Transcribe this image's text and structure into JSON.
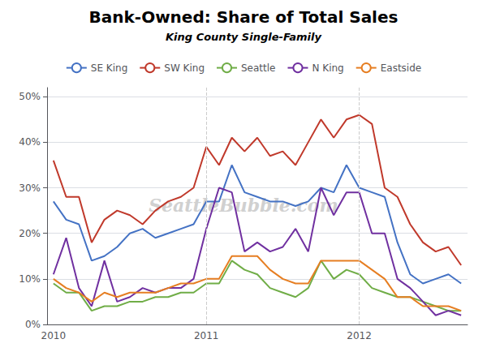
{
  "chart_data": {
    "type": "line",
    "title": "Bank-Owned: Share of Total Sales",
    "subtitle": "King County Single-Family",
    "annotations": [
      "SeattleBubble.com"
    ],
    "categories": [
      "2010",
      null,
      null,
      null,
      null,
      null,
      null,
      null,
      null,
      null,
      null,
      null,
      "2011",
      null,
      null,
      null,
      null,
      null,
      null,
      null,
      null,
      null,
      null,
      null,
      "2012",
      null,
      null,
      null,
      null,
      null,
      null,
      null,
      null
    ],
    "series": [
      {
        "name": "SE King",
        "color": "#4472c4",
        "values": [
          0.27,
          0.23,
          0.22,
          0.14,
          0.15,
          0.17,
          0.2,
          0.21,
          0.19,
          0.2,
          0.21,
          0.22,
          0.27,
          0.27,
          0.35,
          0.29,
          0.28,
          0.27,
          0.27,
          0.26,
          0.27,
          0.3,
          0.29,
          0.35,
          0.3,
          0.29,
          0.28,
          0.18,
          0.11,
          0.09,
          0.1,
          0.11,
          0.09
        ]
      },
      {
        "name": "SW King",
        "color": "#c0392b",
        "values": [
          0.36,
          0.28,
          0.28,
          0.18,
          0.23,
          0.25,
          0.24,
          0.22,
          0.25,
          0.27,
          0.28,
          0.3,
          0.39,
          0.35,
          0.41,
          0.38,
          0.41,
          0.37,
          0.38,
          0.35,
          0.4,
          0.45,
          0.41,
          0.45,
          0.46,
          0.44,
          0.3,
          0.28,
          0.22,
          0.18,
          0.16,
          0.17,
          0.13
        ]
      },
      {
        "name": "Seattle",
        "color": "#70ad47",
        "values": [
          0.09,
          0.07,
          0.07,
          0.03,
          0.04,
          0.04,
          0.05,
          0.05,
          0.06,
          0.06,
          0.07,
          0.07,
          0.09,
          0.09,
          0.14,
          0.12,
          0.11,
          0.08,
          0.07,
          0.06,
          0.08,
          0.14,
          0.1,
          0.12,
          0.11,
          0.08,
          0.07,
          0.06,
          0.06,
          0.05,
          0.04,
          0.03,
          0.03
        ]
      },
      {
        "name": "N King",
        "color": "#7030a0",
        "values": [
          0.11,
          0.19,
          0.08,
          0.04,
          0.14,
          0.05,
          0.06,
          0.08,
          0.07,
          0.08,
          0.08,
          0.1,
          0.21,
          0.3,
          0.29,
          0.16,
          0.18,
          0.16,
          0.17,
          0.21,
          0.16,
          0.3,
          0.24,
          0.29,
          0.29,
          0.2,
          0.2,
          0.1,
          0.08,
          0.05,
          0.02,
          0.03,
          0.02
        ]
      },
      {
        "name": "Eastside",
        "color": "#e67e22",
        "values": [
          0.1,
          0.08,
          0.07,
          0.05,
          0.07,
          0.06,
          0.07,
          0.07,
          0.07,
          0.08,
          0.09,
          0.09,
          0.1,
          0.1,
          0.15,
          0.15,
          0.15,
          0.12,
          0.1,
          0.09,
          0.09,
          0.14,
          0.14,
          0.14,
          0.14,
          0.12,
          0.1,
          0.06,
          0.06,
          0.04,
          0.04,
          0.04,
          0.03
        ]
      }
    ],
    "ylim": [
      0,
      0.52
    ],
    "yticks": [
      {
        "value": 0,
        "label": "0%"
      },
      {
        "value": 0.1,
        "label": "10%"
      },
      {
        "value": 0.2,
        "label": "20%"
      },
      {
        "value": 0.3,
        "label": "30%"
      },
      {
        "value": 0.4,
        "label": "40%"
      },
      {
        "value": 0.5,
        "label": "50%"
      }
    ],
    "grid": true,
    "legend": "top"
  }
}
